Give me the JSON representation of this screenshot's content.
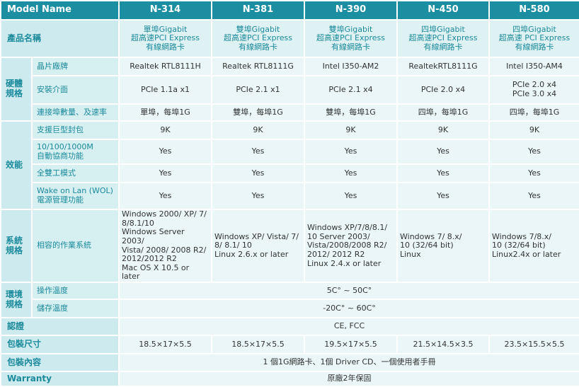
{
  "header": {
    "label": "Model Name",
    "models": [
      "N-314",
      "N-381",
      "N-390",
      "N-450",
      "N-580"
    ]
  },
  "product_name": {
    "label": "產品名稱",
    "values": [
      [
        "單埠Gigabit",
        "超高速PCI Express",
        "有線網路卡"
      ],
      [
        "雙埠Gigabit",
        "超高速PCI Express",
        "有線網路卡"
      ],
      [
        "雙埠Gigabit",
        "超高速PCI Express",
        "有線網路卡"
      ],
      [
        "四埠Gigabit",
        "超高速PCI Express",
        "有線網路卡"
      ],
      [
        "四埠Gigabit",
        "超高速 PCI Express",
        "有線網路卡"
      ]
    ]
  },
  "hardware": {
    "group": "硬體規格",
    "chip": {
      "label": "晶片廠牌",
      "values": [
        "Realtek RTL8111H",
        "Realtek RTL8111G",
        "Intel I350-AM2",
        "RealtekRTL8111G",
        "Intel I350-AM4"
      ]
    },
    "interface": {
      "label": "安裝介面",
      "values": [
        [
          "PCIe 1.1a x1"
        ],
        [
          "PCIe 2.1 x1"
        ],
        [
          "PCIe 2.1 x4"
        ],
        [
          "PCIe 2.0 x4"
        ],
        [
          "PCIe 2.0 x4",
          "PCIe 3.0 x4"
        ]
      ]
    },
    "ports": {
      "label": "連接埠數量、及速率",
      "values": [
        "單埠，每埠1G",
        "雙埠，每埠1G",
        "雙埠，每埠1G",
        "四埠，每埠1G",
        "四埠，每埠1G"
      ]
    }
  },
  "performance": {
    "group": "效能",
    "jumbo": {
      "label": "支援巨型封包",
      "values": [
        "9K",
        "9K",
        "9K",
        "9K",
        "9K"
      ]
    },
    "autoneg": {
      "label": [
        "10/100/1000M",
        "自動協商功能"
      ],
      "values": [
        "Yes",
        "Yes",
        "Yes",
        "Yes",
        "Yes"
      ]
    },
    "duplex": {
      "label": "全雙工模式",
      "values": [
        "Yes",
        "Yes",
        "Yes",
        "Yes",
        "Yes"
      ]
    },
    "wol": {
      "label": [
        "Wake on Lan (WOL)",
        "電源管理功能"
      ],
      "values": [
        "Yes",
        "Yes",
        "Yes",
        "Yes",
        "Yes"
      ]
    }
  },
  "system": {
    "group": "系統規格",
    "os": {
      "label": "相容的作業系統",
      "values": [
        [
          "Windows 2000/ XP/ 7/",
          "8/8.1/10",
          "Windows Server 2003/",
          "Vista/ 2008/ 2008 R2/",
          "2012/2012 R2",
          "Mac OS X 10.5 or later"
        ],
        [
          "Windows XP/ Vista/ 7/",
          "8/ 8.1/ 10",
          "Linux 2.6.x or later"
        ],
        [
          "Windows XP/7/8/8.1/",
          "10 Server 2003/",
          "Vista/2008/2008 R2/",
          "2012/ 2012 R2",
          "Linux 2.4.x or later"
        ],
        [
          "Windows 7/ 8.x/",
          "10 (32/64 bit)",
          "Linux"
        ],
        [
          "Windows 7/8.x/",
          "10 (32/64 bit)",
          "Linux2.4x or later"
        ]
      ]
    }
  },
  "environment": {
    "group": "環境規格",
    "op_temp": {
      "label": "操作溫度",
      "value": "5C° ~ 50C°"
    },
    "storage_temp": {
      "label": "儲存溫度",
      "value": "-20C° ~ 60C°"
    }
  },
  "certification": {
    "label": "認證",
    "value": "CE, FCC"
  },
  "package_size": {
    "label": "包裝尺寸",
    "values": [
      "18.5×17×5.5",
      "18.5×17×5.5",
      "19.5×17×5.5",
      "21.5×14.5×3.5",
      "23.5×15.5×5.5"
    ]
  },
  "package_content": {
    "label": "包裝內容",
    "value": "1 個1G網路卡、1個 Driver CD、一個使用者手冊"
  },
  "warranty": {
    "label": "Warranty",
    "value": "原廠2年保固"
  },
  "colors": {
    "header": "#1c8ea1",
    "label_bg": "#cdebee",
    "label_text": "#1b8a9c",
    "cell_bg": "#eaf6f7"
  }
}
